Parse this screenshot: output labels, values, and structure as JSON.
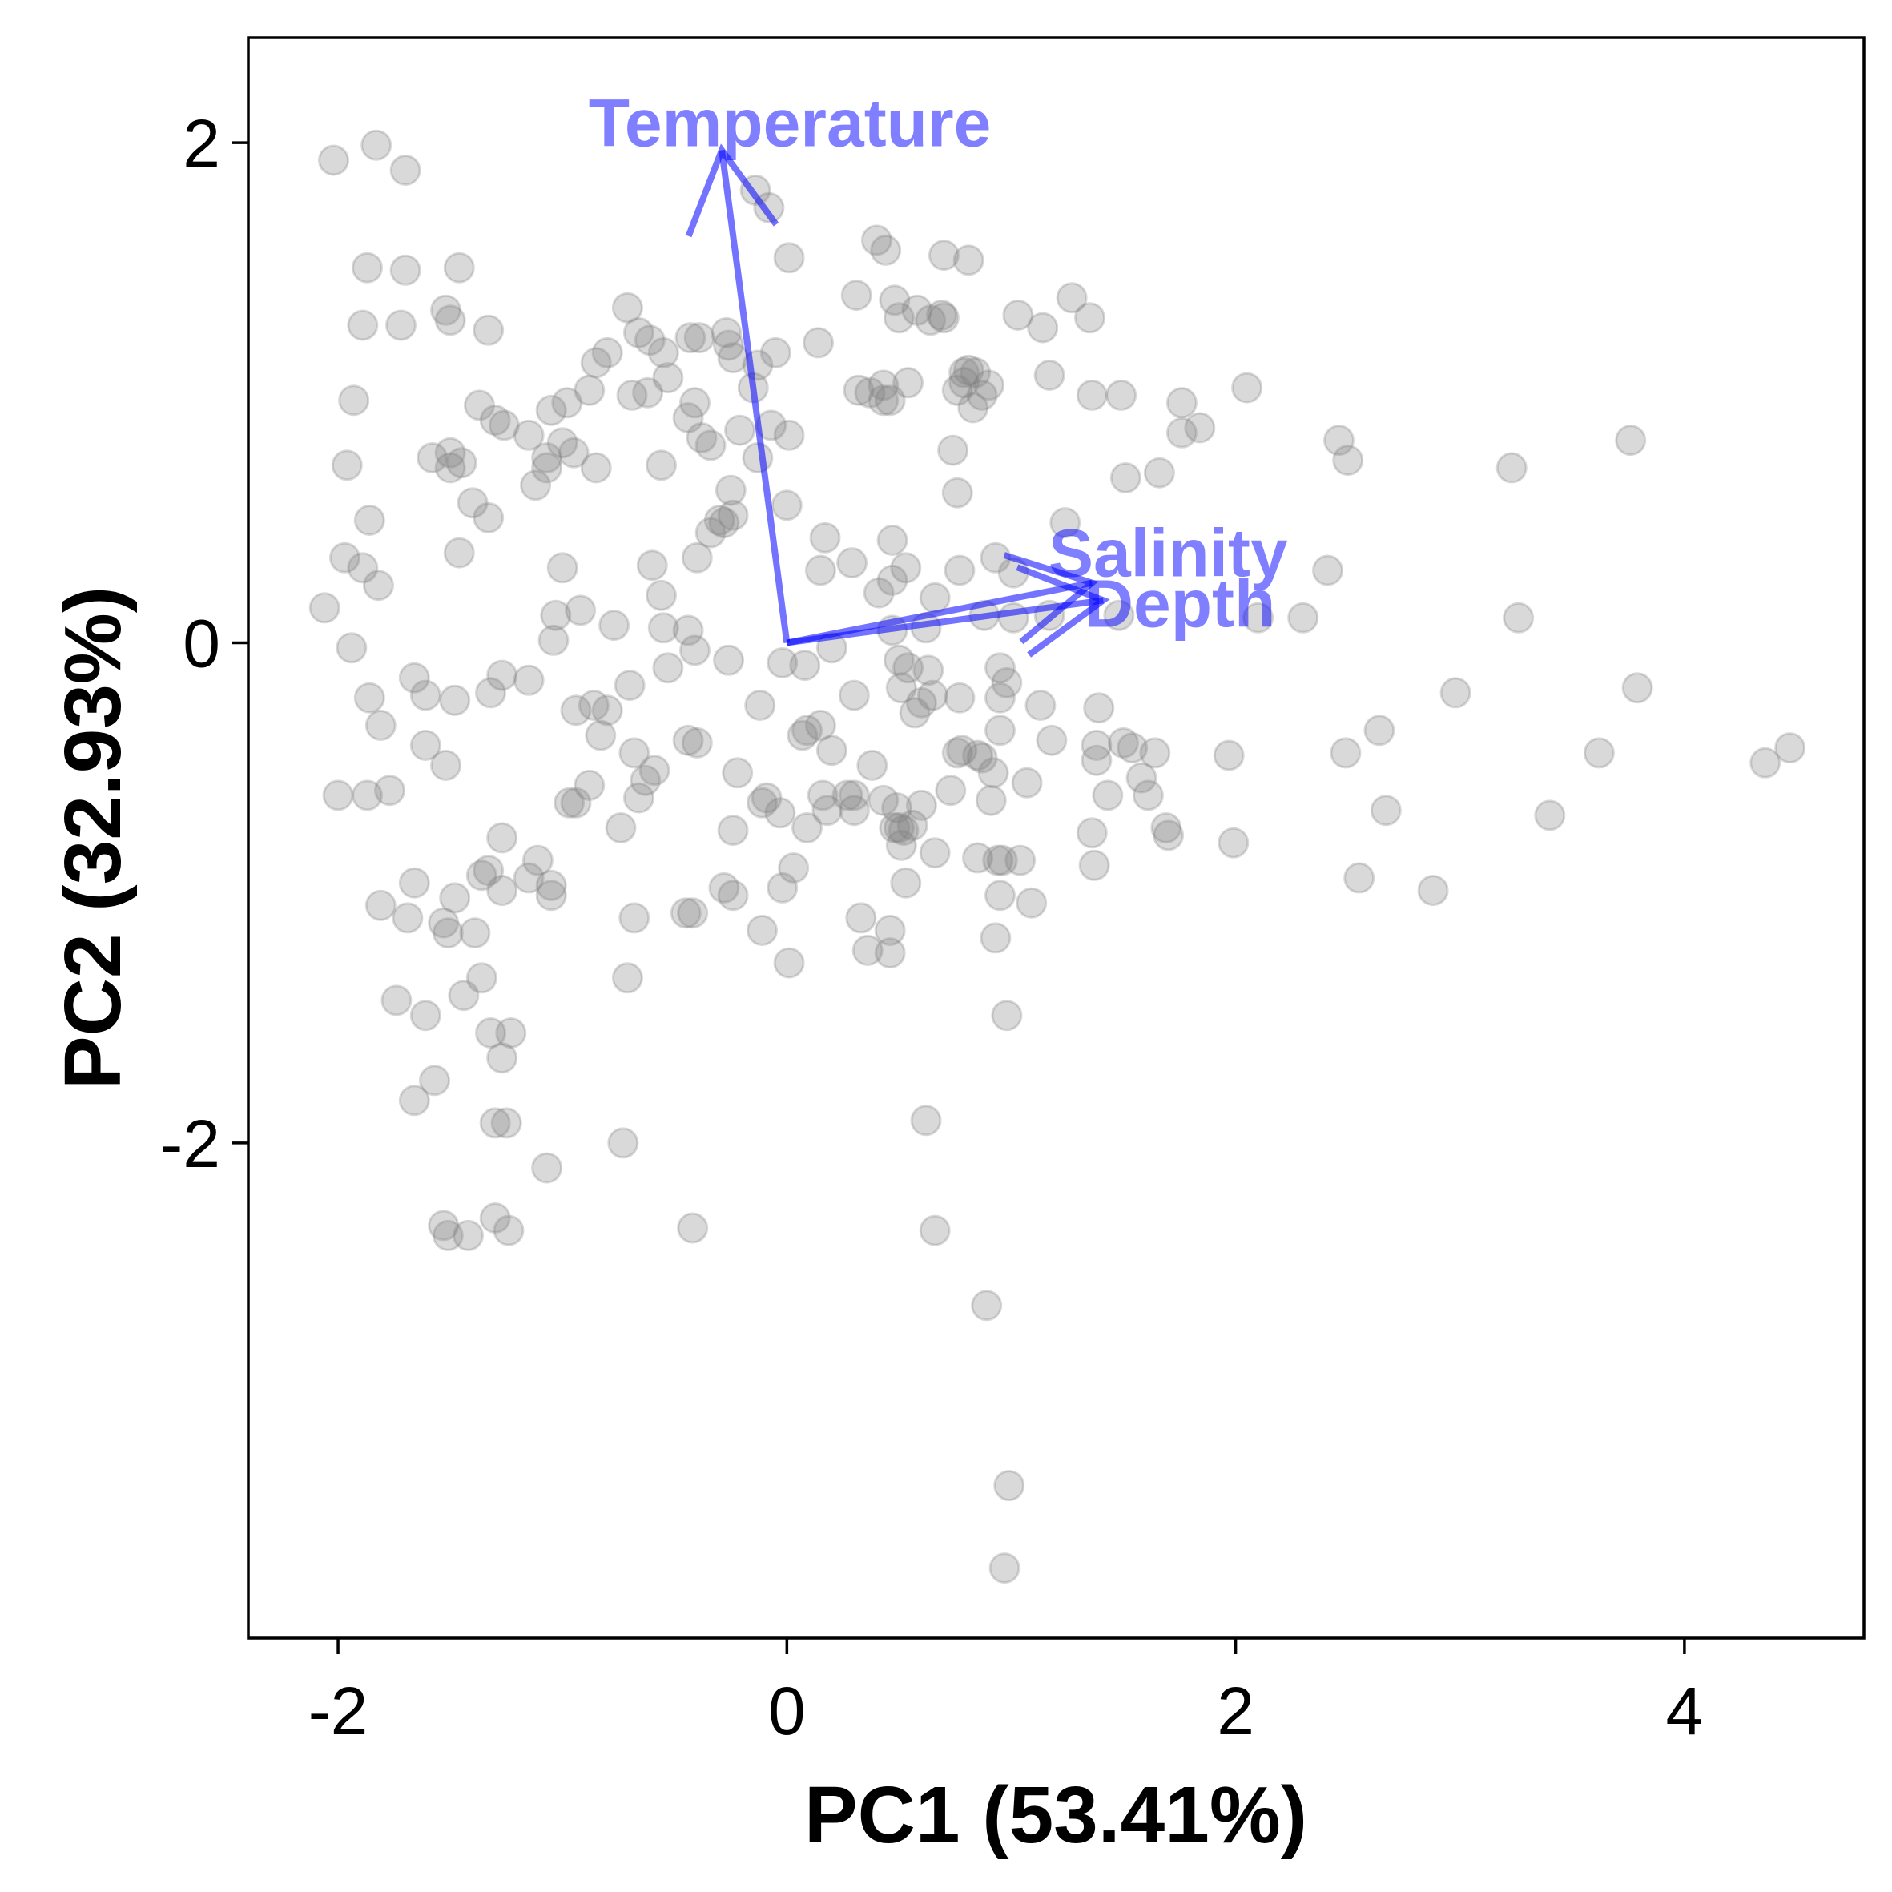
{
  "chart_data": {
    "type": "scatter",
    "title": "",
    "xlabel": "PC1 (53.41%)",
    "ylabel": "PC2 (32.93%)",
    "xlim": [
      -2.4,
      4.8
    ],
    "ylim": [
      -3.98,
      2.42
    ],
    "x_ticks": [
      -2,
      0,
      2,
      4
    ],
    "y_ticks": [
      -2,
      0,
      2
    ],
    "x_tick_labels": [
      "-2",
      "0",
      "2",
      "4"
    ],
    "y_tick_labels": [
      "-2",
      "0",
      "2"
    ],
    "grid": false,
    "point_color": "#808080",
    "arrow_color": "#0000ff",
    "loadings": [
      {
        "label": "Temperature",
        "x": -0.29,
        "y": 1.97
      },
      {
        "label": "Salinity",
        "x": 1.36,
        "y": 0.24
      },
      {
        "label": "Depth",
        "x": 1.41,
        "y": 0.17
      }
    ],
    "points": [
      [
        -2.02,
        1.93
      ],
      [
        -1.83,
        1.99
      ],
      [
        -1.7,
        1.89
      ],
      [
        -1.87,
        1.5
      ],
      [
        -1.7,
        1.49
      ],
      [
        -1.46,
        1.5
      ],
      [
        -1.89,
        1.27
      ],
      [
        -1.72,
        1.27
      ],
      [
        -1.52,
        1.33
      ],
      [
        -1.5,
        1.29
      ],
      [
        -1.33,
        1.25
      ],
      [
        -1.93,
        0.97
      ],
      [
        -1.96,
        0.71
      ],
      [
        -1.86,
        0.49
      ],
      [
        -1.97,
        0.34
      ],
      [
        -1.89,
        0.3
      ],
      [
        -1.82,
        0.23
      ],
      [
        -2.06,
        0.14
      ],
      [
        -1.94,
        -0.02
      ],
      [
        -1.58,
        0.74
      ],
      [
        -1.5,
        0.76
      ],
      [
        -1.5,
        0.7
      ],
      [
        -1.45,
        0.72
      ],
      [
        -1.4,
        0.56
      ],
      [
        -1.46,
        0.36
      ],
      [
        -1.33,
        0.5
      ],
      [
        -1.37,
        0.95
      ],
      [
        -1.3,
        0.89
      ],
      [
        -1.26,
        0.87
      ],
      [
        -1.15,
        0.83
      ],
      [
        -1.05,
        0.93
      ],
      [
        -1.07,
        0.74
      ],
      [
        -1.0,
        0.8
      ],
      [
        -0.95,
        0.76
      ],
      [
        -1.07,
        0.7
      ],
      [
        -1.12,
        0.63
      ],
      [
        -0.98,
        0.96
      ],
      [
        -0.88,
        1.01
      ],
      [
        -0.85,
        1.12
      ],
      [
        -0.8,
        1.16
      ],
      [
        -0.71,
        1.34
      ],
      [
        -0.66,
        1.24
      ],
      [
        -0.61,
        1.21
      ],
      [
        -0.55,
        1.16
      ],
      [
        -0.62,
        1.0
      ],
      [
        -0.69,
        0.99
      ],
      [
        -0.53,
        1.06
      ],
      [
        -0.43,
        1.22
      ],
      [
        -0.39,
        1.22
      ],
      [
        -0.41,
        0.96
      ],
      [
        -0.44,
        0.9
      ],
      [
        -0.38,
        0.82
      ],
      [
        -0.34,
        0.79
      ],
      [
        -0.27,
        1.24
      ],
      [
        -0.26,
        1.19
      ],
      [
        -0.24,
        1.14
      ],
      [
        -0.13,
        1.11
      ],
      [
        -0.05,
        1.16
      ],
      [
        -0.15,
        1.02
      ],
      [
        -0.21,
        0.85
      ],
      [
        -0.13,
        0.74
      ],
      [
        -0.07,
        0.87
      ],
      [
        0.01,
        0.83
      ],
      [
        0.0,
        0.55
      ],
      [
        -0.25,
        0.61
      ],
      [
        -0.3,
        0.49
      ],
      [
        -0.56,
        0.71
      ],
      [
        -0.85,
        0.7
      ],
      [
        -1.0,
        0.3
      ],
      [
        -0.92,
        0.13
      ],
      [
        -0.77,
        0.07
      ],
      [
        -0.55,
        0.06
      ],
      [
        -0.44,
        0.05
      ],
      [
        -0.41,
        -0.03
      ],
      [
        -0.26,
        -0.07
      ],
      [
        -0.6,
        0.31
      ],
      [
        -0.4,
        0.34
      ],
      [
        -0.34,
        0.44
      ],
      [
        -0.28,
        0.48
      ],
      [
        -0.24,
        0.51
      ],
      [
        -0.56,
        0.19
      ],
      [
        -0.14,
        1.81
      ],
      [
        -0.08,
        1.74
      ],
      [
        0.01,
        1.54
      ],
      [
        0.14,
        1.2
      ],
      [
        0.31,
        1.39
      ],
      [
        0.4,
        1.61
      ],
      [
        0.44,
        1.57
      ],
      [
        0.48,
        1.37
      ],
      [
        0.5,
        1.3
      ],
      [
        0.58,
        1.33
      ],
      [
        0.64,
        1.29
      ],
      [
        0.69,
        1.31
      ],
      [
        0.7,
        1.3
      ],
      [
        0.7,
        1.55
      ],
      [
        0.81,
        1.53
      ],
      [
        0.32,
        1.01
      ],
      [
        0.37,
        1.0
      ],
      [
        0.43,
        1.03
      ],
      [
        0.43,
        0.97
      ],
      [
        0.46,
        0.97
      ],
      [
        0.54,
        1.04
      ],
      [
        0.76,
        1.01
      ],
      [
        0.79,
        1.08
      ],
      [
        0.81,
        1.09
      ],
      [
        0.79,
        1.04
      ],
      [
        0.84,
        1.08
      ],
      [
        0.87,
        0.99
      ],
      [
        0.9,
        1.03
      ],
      [
        0.83,
        0.94
      ],
      [
        1.03,
        1.31
      ],
      [
        1.14,
        1.26
      ],
      [
        1.27,
        1.38
      ],
      [
        1.35,
        1.3
      ],
      [
        1.17,
        1.07
      ],
      [
        1.36,
        0.99
      ],
      [
        1.49,
        0.99
      ],
      [
        1.76,
        0.96
      ],
      [
        1.84,
        0.86
      ],
      [
        1.76,
        0.84
      ],
      [
        2.05,
        1.02
      ],
      [
        0.74,
        0.77
      ],
      [
        0.76,
        0.6
      ],
      [
        1.51,
        0.66
      ],
      [
        1.66,
        0.68
      ],
      [
        1.24,
        0.48
      ],
      [
        2.46,
        0.81
      ],
      [
        2.5,
        0.73
      ],
      [
        3.23,
        0.7
      ],
      [
        3.76,
        0.81
      ],
      [
        0.17,
        0.42
      ],
      [
        0.47,
        0.41
      ],
      [
        0.15,
        0.29
      ],
      [
        0.29,
        0.32
      ],
      [
        0.47,
        0.25
      ],
      [
        0.53,
        0.3
      ],
      [
        0.41,
        0.2
      ],
      [
        0.66,
        0.18
      ],
      [
        0.77,
        0.29
      ],
      [
        0.93,
        0.34
      ],
      [
        1.01,
        0.28
      ],
      [
        0.88,
        0.11
      ],
      [
        1.01,
        0.1
      ],
      [
        1.17,
        0.11
      ],
      [
        1.48,
        0.11
      ],
      [
        2.1,
        0.1
      ],
      [
        2.3,
        0.1
      ],
      [
        2.41,
        0.29
      ],
      [
        3.26,
        0.1
      ],
      [
        0.62,
        0.06
      ],
      [
        0.47,
        0.05
      ],
      [
        0.2,
        -0.02
      ],
      [
        0.08,
        -0.09
      ],
      [
        -0.02,
        -0.08
      ],
      [
        0.5,
        -0.07
      ],
      [
        0.54,
        -0.1
      ],
      [
        0.63,
        -0.11
      ],
      [
        0.51,
        -0.18
      ],
      [
        0.57,
        -0.28
      ],
      [
        0.6,
        -0.24
      ],
      [
        0.65,
        -0.21
      ],
      [
        0.77,
        -0.22
      ],
      [
        0.95,
        -0.1
      ],
      [
        0.98,
        -0.16
      ],
      [
        0.95,
        -0.22
      ],
      [
        1.13,
        -0.25
      ],
      [
        1.39,
        -0.26
      ],
      [
        0.95,
        -0.35
      ],
      [
        1.18,
        -0.39
      ],
      [
        0.85,
        -0.45
      ],
      [
        0.76,
        -0.44
      ],
      [
        0.78,
        -0.43
      ],
      [
        0.87,
        -0.46
      ],
      [
        0.73,
        -0.59
      ],
      [
        0.92,
        -0.52
      ],
      [
        1.07,
        -0.56
      ],
      [
        1.38,
        -0.41
      ],
      [
        1.38,
        -0.47
      ],
      [
        1.5,
        -0.4
      ],
      [
        1.54,
        -0.42
      ],
      [
        1.64,
        -0.44
      ],
      [
        1.58,
        -0.54
      ],
      [
        1.61,
        -0.61
      ],
      [
        1.69,
        -0.74
      ],
      [
        1.7,
        -0.77
      ],
      [
        1.97,
        -0.45
      ],
      [
        1.43,
        -0.61
      ],
      [
        0.3,
        -0.21
      ],
      [
        0.15,
        -0.33
      ],
      [
        0.09,
        -0.35
      ],
      [
        -0.12,
        -0.25
      ],
      [
        -0.44,
        -0.39
      ],
      [
        -0.4,
        -0.4
      ],
      [
        -0.59,
        -0.51
      ],
      [
        -0.68,
        -0.44
      ],
      [
        -0.63,
        -0.55
      ],
      [
        -0.22,
        -0.52
      ],
      [
        -0.66,
        -0.62
      ],
      [
        -0.74,
        -0.74
      ],
      [
        -0.88,
        -0.57
      ],
      [
        -0.97,
        -0.64
      ],
      [
        -0.94,
        -0.64
      ],
      [
        -0.7,
        -0.17
      ],
      [
        -0.8,
        -0.27
      ],
      [
        -0.94,
        -0.27
      ],
      [
        -0.86,
        -0.25
      ],
      [
        -0.11,
        -0.64
      ],
      [
        -0.24,
        -0.75
      ],
      [
        -0.09,
        -0.62
      ],
      [
        -0.03,
        -0.68
      ],
      [
        0.09,
        -0.74
      ],
      [
        0.16,
        -0.61
      ],
      [
        0.27,
        -0.61
      ],
      [
        0.3,
        -0.61
      ],
      [
        0.18,
        -0.67
      ],
      [
        0.3,
        -0.67
      ],
      [
        0.38,
        -0.49
      ],
      [
        0.43,
        -0.63
      ],
      [
        0.49,
        -0.66
      ],
      [
        0.48,
        -0.74
      ],
      [
        0.5,
        -0.74
      ],
      [
        0.56,
        -0.73
      ],
      [
        0.52,
        -0.75
      ],
      [
        0.51,
        -0.81
      ],
      [
        0.6,
        -0.65
      ],
      [
        0.66,
        -0.84
      ],
      [
        0.53,
        -0.96
      ],
      [
        0.91,
        -0.63
      ],
      [
        0.85,
        -0.86
      ],
      [
        0.94,
        -0.87
      ],
      [
        0.96,
        -0.87
      ],
      [
        1.04,
        -0.87
      ],
      [
        0.95,
        -1.01
      ],
      [
        1.09,
        -1.04
      ],
      [
        0.93,
        -1.18
      ],
      [
        0.98,
        -1.49
      ],
      [
        1.36,
        -0.76
      ],
      [
        1.37,
        -0.89
      ],
      [
        1.99,
        -0.8
      ],
      [
        0.03,
        -0.9
      ],
      [
        -0.02,
        -0.98
      ],
      [
        -0.28,
        -0.98
      ],
      [
        -0.24,
        -1.01
      ],
      [
        -0.11,
        -1.15
      ],
      [
        0.01,
        -1.28
      ],
      [
        0.33,
        -1.1
      ],
      [
        0.36,
        -1.23
      ],
      [
        0.46,
        -1.15
      ],
      [
        0.46,
        -1.24
      ],
      [
        -0.45,
        -1.08
      ],
      [
        -0.42,
        -1.08
      ],
      [
        -0.68,
        -1.1
      ],
      [
        -0.71,
        -1.34
      ],
      [
        -0.73,
        -2.0
      ],
      [
        -0.42,
        -2.34
      ],
      [
        -1.11,
        -0.87
      ],
      [
        -1.05,
        -0.97
      ],
      [
        -1.05,
        -1.01
      ],
      [
        -1.15,
        -0.94
      ],
      [
        -1.27,
        -0.99
      ],
      [
        -1.36,
        -0.93
      ],
      [
        -1.33,
        -0.91
      ],
      [
        -1.27,
        -0.78
      ],
      [
        -1.48,
        -1.02
      ],
      [
        -1.53,
        -1.12
      ],
      [
        -1.51,
        -1.16
      ],
      [
        -1.39,
        -1.16
      ],
      [
        -1.66,
        -0.96
      ],
      [
        -1.69,
        -1.1
      ],
      [
        -1.81,
        -1.05
      ],
      [
        -1.36,
        -1.34
      ],
      [
        -1.44,
        -1.41
      ],
      [
        -1.61,
        -1.49
      ],
      [
        -1.74,
        -1.43
      ],
      [
        -1.32,
        -1.56
      ],
      [
        -1.23,
        -1.56
      ],
      [
        -1.27,
        -1.66
      ],
      [
        -1.66,
        -1.83
      ],
      [
        -1.57,
        -1.75
      ],
      [
        -1.3,
        -1.92
      ],
      [
        -1.25,
        -1.92
      ],
      [
        -1.07,
        -2.1
      ],
      [
        -1.3,
        -2.3
      ],
      [
        -1.53,
        -2.33
      ],
      [
        -1.51,
        -2.37
      ],
      [
        -1.42,
        -2.37
      ],
      [
        -1.24,
        -2.35
      ],
      [
        -1.66,
        -0.14
      ],
      [
        -1.61,
        -0.21
      ],
      [
        -1.48,
        -0.23
      ],
      [
        -1.32,
        -0.2
      ],
      [
        -1.27,
        -0.13
      ],
      [
        -1.15,
        -0.15
      ],
      [
        -1.86,
        -0.22
      ],
      [
        -1.81,
        -0.33
      ],
      [
        -1.61,
        -0.41
      ],
      [
        -1.52,
        -0.49
      ],
      [
        -2.0,
        -0.61
      ],
      [
        -1.87,
        -0.61
      ],
      [
        -1.77,
        -0.59
      ],
      [
        -1.03,
        0.11
      ],
      [
        -1.04,
        0.01
      ],
      [
        -0.53,
        -0.1
      ],
      [
        -0.83,
        -0.37
      ],
      [
        0.07,
        -0.37
      ],
      [
        0.2,
        -0.43
      ],
      [
        0.62,
        -1.91
      ],
      [
        0.66,
        -2.35
      ],
      [
        0.89,
        -2.65
      ],
      [
        0.99,
        -3.37
      ],
      [
        0.97,
        -3.7
      ],
      [
        2.49,
        -0.44
      ],
      [
        2.64,
        -0.35
      ],
      [
        2.67,
        -0.67
      ],
      [
        2.55,
        -0.94
      ],
      [
        2.88,
        -0.99
      ],
      [
        2.98,
        -0.2
      ],
      [
        3.4,
        -0.69
      ],
      [
        3.62,
        -0.44
      ],
      [
        3.79,
        -0.18
      ],
      [
        4.36,
        -0.48
      ],
      [
        4.47,
        -0.42
      ]
    ]
  }
}
